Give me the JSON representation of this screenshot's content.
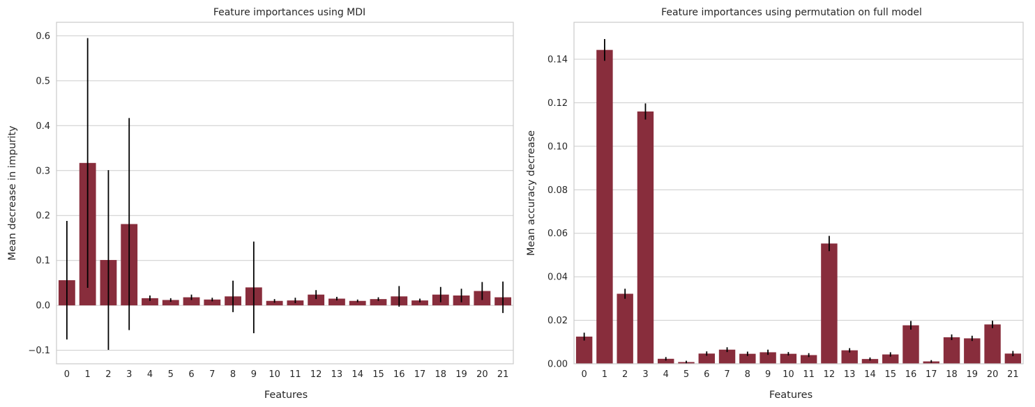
{
  "chart_data": [
    {
      "type": "bar",
      "title": "Feature importances using MDI",
      "xlabel": "Features",
      "ylabel": "Mean decrease in impurity",
      "categories": [
        "0",
        "1",
        "2",
        "3",
        "4",
        "5",
        "6",
        "7",
        "8",
        "9",
        "10",
        "11",
        "12",
        "13",
        "14",
        "15",
        "16",
        "17",
        "18",
        "19",
        "20",
        "21"
      ],
      "values": [
        0.056,
        0.317,
        0.101,
        0.181,
        0.016,
        0.012,
        0.018,
        0.013,
        0.02,
        0.04,
        0.01,
        0.011,
        0.024,
        0.015,
        0.01,
        0.014,
        0.02,
        0.011,
        0.024,
        0.022,
        0.032,
        0.018
      ],
      "errors": [
        0.132,
        0.278,
        0.2,
        0.236,
        0.006,
        0.004,
        0.006,
        0.004,
        0.035,
        0.102,
        0.004,
        0.006,
        0.01,
        0.004,
        0.003,
        0.004,
        0.023,
        0.004,
        0.017,
        0.015,
        0.02,
        0.035
      ],
      "ylim": [
        -0.13,
        0.63
      ],
      "yticks": [
        -0.1,
        0.0,
        0.1,
        0.2,
        0.3,
        0.4,
        0.5,
        0.6
      ],
      "ytick_labels": [
        "−0.1",
        "0.0",
        "0.1",
        "0.2",
        "0.3",
        "0.4",
        "0.5",
        "0.6"
      ],
      "grid": "horizontal",
      "bar_color": "#882d3c",
      "error_color": "#000000"
    },
    {
      "type": "bar",
      "title": "Feature importances using permutation on full model",
      "xlabel": "Features",
      "ylabel": "Mean accuracy decrease",
      "categories": [
        "0",
        "1",
        "2",
        "3",
        "4",
        "5",
        "6",
        "7",
        "8",
        "9",
        "10",
        "11",
        "12",
        "13",
        "14",
        "15",
        "16",
        "17",
        "18",
        "19",
        "20",
        "21"
      ],
      "values": [
        0.0125,
        0.1443,
        0.0322,
        0.116,
        0.0023,
        0.0008,
        0.0047,
        0.0065,
        0.0046,
        0.0053,
        0.0046,
        0.004,
        0.0553,
        0.0062,
        0.0022,
        0.0043,
        0.0177,
        0.0011,
        0.0122,
        0.0117,
        0.0181,
        0.0047
      ],
      "errors": [
        0.0018,
        0.005,
        0.0023,
        0.0037,
        0.0008,
        0.0006,
        0.001,
        0.0011,
        0.001,
        0.0012,
        0.0008,
        0.0009,
        0.0035,
        0.001,
        0.0007,
        0.001,
        0.002,
        0.0006,
        0.0013,
        0.0012,
        0.0017,
        0.0012
      ],
      "ylim": [
        0,
        0.157
      ],
      "yticks": [
        0.0,
        0.02,
        0.04,
        0.06,
        0.08,
        0.1,
        0.12,
        0.14
      ],
      "ytick_labels": [
        "0.00",
        "0.02",
        "0.04",
        "0.06",
        "0.08",
        "0.10",
        "0.12",
        "0.14"
      ],
      "grid": "horizontal",
      "bar_color": "#882d3c",
      "error_color": "#000000"
    }
  ]
}
